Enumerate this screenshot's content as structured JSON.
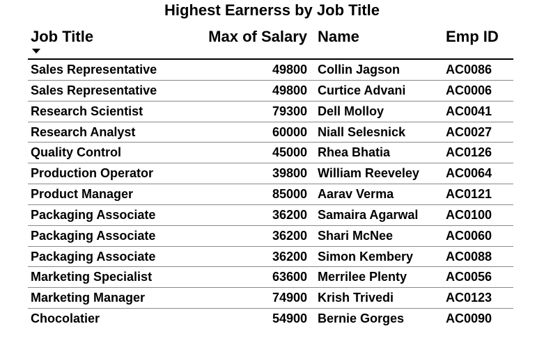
{
  "report": {
    "title": "Highest Earnerss by Job Title",
    "sort_indicator_icon": "sort-descending-icon",
    "columns": {
      "job_title": "Job Title",
      "max_salary": "Max of Salary",
      "name": "Name",
      "emp_id": "Emp ID"
    },
    "rows": [
      {
        "job_title": "Sales Representative",
        "max_salary": "49800",
        "name": "Collin Jagson",
        "emp_id": "AC0086"
      },
      {
        "job_title": "Sales Representative",
        "max_salary": "49800",
        "name": "Curtice Advani",
        "emp_id": "AC0006"
      },
      {
        "job_title": "Research Scientist",
        "max_salary": "79300",
        "name": "Dell Molloy",
        "emp_id": "AC0041"
      },
      {
        "job_title": "Research Analyst",
        "max_salary": "60000",
        "name": "Niall Selesnick",
        "emp_id": "AC0027"
      },
      {
        "job_title": "Quality Control",
        "max_salary": "45000",
        "name": "Rhea Bhatia",
        "emp_id": "AC0126"
      },
      {
        "job_title": "Production Operator",
        "max_salary": "39800",
        "name": "William Reeveley",
        "emp_id": "AC0064"
      },
      {
        "job_title": "Product Manager",
        "max_salary": "85000",
        "name": "Aarav Verma",
        "emp_id": "AC0121"
      },
      {
        "job_title": "Packaging Associate",
        "max_salary": "36200",
        "name": "Samaira Agarwal",
        "emp_id": "AC0100"
      },
      {
        "job_title": "Packaging Associate",
        "max_salary": "36200",
        "name": "Shari McNee",
        "emp_id": "AC0060"
      },
      {
        "job_title": "Packaging Associate",
        "max_salary": "36200",
        "name": "Simon Kembery",
        "emp_id": "AC0088"
      },
      {
        "job_title": "Marketing Specialist",
        "max_salary": "63600",
        "name": "Merrilee Plenty",
        "emp_id": "AC0056"
      },
      {
        "job_title": "Marketing Manager",
        "max_salary": "74900",
        "name": "Krish Trivedi",
        "emp_id": "AC0123"
      },
      {
        "job_title": "Chocolatier",
        "max_salary": "54900",
        "name": "Bernie Gorges",
        "emp_id": "AC0090"
      }
    ]
  }
}
